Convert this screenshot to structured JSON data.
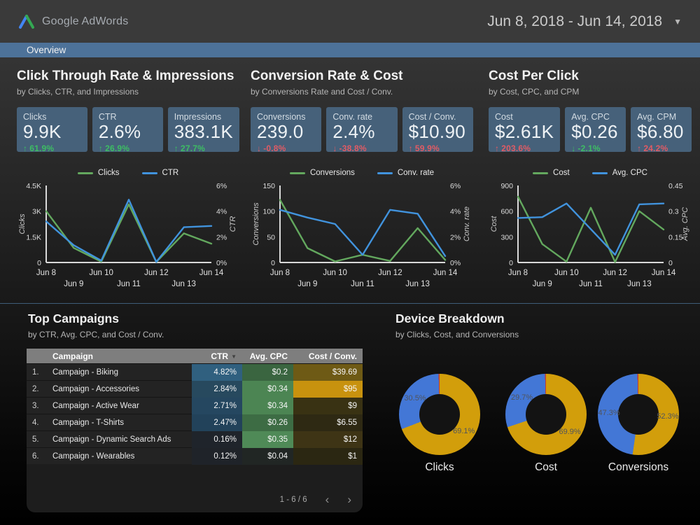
{
  "header": {
    "logo_text": "Google AdWords",
    "date_range": "Jun 8, 2018 - Jun 14, 2018"
  },
  "nav": {
    "tab": "Overview"
  },
  "colors": {
    "positive": "#3DBE63",
    "negative": "#E25B64",
    "scorecard_bg": "#46617A",
    "nav_bg": "#4D7299",
    "line_green": "#63A85E",
    "line_blue": "#4193DD",
    "donut_gold": "#D29E0B",
    "donut_blue": "#4377D6",
    "donut_red": "#C13B33"
  },
  "sections": [
    {
      "title": "Click Through Rate & Impressions",
      "subtitle": "by Clicks, CTR, and Impressions",
      "cards": [
        {
          "label": "Clicks",
          "value": "9.9K",
          "delta": "61.9%",
          "dir": "up",
          "good": true
        },
        {
          "label": "CTR",
          "value": "2.6%",
          "delta": "26.9%",
          "dir": "up",
          "good": true
        },
        {
          "label": "Impressions",
          "value": "383.1K",
          "delta": "27.7%",
          "dir": "up",
          "good": true
        }
      ]
    },
    {
      "title": "Conversion Rate & Cost",
      "subtitle": "by Conversions Rate and Cost / Conv.",
      "cards": [
        {
          "label": "Conversions",
          "value": "239.0",
          "delta": "-0.8%",
          "dir": "down",
          "good": false
        },
        {
          "label": "Conv. rate",
          "value": "2.4%",
          "delta": "-38.8%",
          "dir": "down",
          "good": false
        },
        {
          "label": "Cost / Conv.",
          "value": "$10.90",
          "delta": "59.9%",
          "dir": "up",
          "good": false
        }
      ]
    },
    {
      "title": "Cost Per Click",
      "subtitle": "by Cost, CPC, and CPM",
      "cards": [
        {
          "label": "Cost",
          "value": "$2.61K",
          "delta": "203.6%",
          "dir": "up",
          "good": false
        },
        {
          "label": "Avg. CPC",
          "value": "$0.26",
          "delta": "-2.1%",
          "dir": "down",
          "good": true
        },
        {
          "label": "Avg. CPM",
          "value": "$6.80",
          "delta": "24.2%",
          "dir": "up",
          "good": false
        }
      ]
    }
  ],
  "chart_data": {
    "line_charts": [
      {
        "type": "line",
        "x": [
          "Jun 8",
          "Jun 9",
          "Jun 10",
          "Jun 11",
          "Jun 12",
          "Jun 13",
          "Jun 14"
        ],
        "left_axis": {
          "title": "Clicks",
          "ticks": [
            "0",
            "1.5K",
            "3K",
            "4.5K"
          ],
          "max": 4500
        },
        "right_axis": {
          "title": "CTR",
          "ticks": [
            "0%",
            "2%",
            "4%",
            "6%"
          ],
          "max": 6
        },
        "series": [
          {
            "name": "Clicks",
            "axis": "left",
            "color": "#63A85E",
            "values": [
              3000,
              850,
              50,
              3400,
              30,
              1700,
              1100
            ]
          },
          {
            "name": "CTR",
            "axis": "right",
            "color": "#4193DD",
            "values": [
              3.2,
              1.35,
              0.15,
              4.9,
              0.05,
              2.75,
              2.85
            ]
          }
        ]
      },
      {
        "type": "line",
        "x": [
          "Jun 8",
          "Jun 9",
          "Jun 10",
          "Jun 11",
          "Jun 12",
          "Jun 13",
          "Jun 14"
        ],
        "left_axis": {
          "title": "Conversions",
          "ticks": [
            "0",
            "50",
            "100",
            "150"
          ],
          "max": 150
        },
        "right_axis": {
          "title": "Conv. rate",
          "ticks": [
            "0%",
            "2%",
            "4%",
            "6%"
          ],
          "max": 6
        },
        "series": [
          {
            "name": "Conversions",
            "axis": "left",
            "color": "#63A85E",
            "values": [
              122,
              28,
              2,
              15,
              3,
              67,
              5
            ]
          },
          {
            "name": "Conv. rate",
            "axis": "right",
            "color": "#4193DD",
            "values": [
              4.1,
              3.5,
              3.0,
              0.6,
              4.1,
              3.8,
              0.5
            ]
          }
        ]
      },
      {
        "type": "line",
        "x": [
          "Jun 8",
          "Jun 9",
          "Jun 10",
          "Jun 11",
          "Jun 12",
          "Jun 13",
          "Jun 14"
        ],
        "left_axis": {
          "title": "Cost",
          "ticks": [
            "0",
            "300",
            "600",
            "900"
          ],
          "max": 900
        },
        "right_axis": {
          "title": "Avg. CPC",
          "ticks": [
            "0",
            "0.15",
            "0.3",
            "0.45"
          ],
          "max": 0.45
        },
        "series": [
          {
            "name": "Cost",
            "axis": "left",
            "color": "#63A85E",
            "values": [
              770,
              215,
              10,
              640,
              5,
              600,
              385
            ]
          },
          {
            "name": "Avg. CPC",
            "axis": "right",
            "color": "#4193DD",
            "values": [
              0.26,
              0.265,
              0.345,
              0.195,
              0.045,
              0.34,
              0.345
            ]
          }
        ]
      }
    ],
    "donut_charts": [
      {
        "type": "donut",
        "label": "Clicks",
        "slices": [
          {
            "value": 69.1,
            "color": "#D29E0B",
            "label": "69.1%"
          },
          {
            "value": 30.5,
            "color": "#4377D6",
            "label": "30.5%"
          },
          {
            "value": 0.4,
            "color": "#C13B33",
            "label": ""
          }
        ]
      },
      {
        "type": "donut",
        "label": "Cost",
        "slices": [
          {
            "value": 69.9,
            "color": "#D29E0B",
            "label": "69.9%"
          },
          {
            "value": 29.7,
            "color": "#4377D6",
            "label": "29.7%"
          },
          {
            "value": 0.4,
            "color": "#C13B33",
            "label": ""
          }
        ]
      },
      {
        "type": "donut",
        "label": "Conversions",
        "slices": [
          {
            "value": 52.3,
            "color": "#D29E0B",
            "label": "52.3%"
          },
          {
            "value": 47.3,
            "color": "#4377D6",
            "label": "47.3%"
          },
          {
            "value": 0.4,
            "color": "#C13B33",
            "label": ""
          }
        ]
      }
    ]
  },
  "top_campaigns": {
    "title": "Top Campaigns",
    "subtitle": "by CTR, Avg. CPC, and Cost / Conv.",
    "columns": {
      "campaign": "Campaign",
      "ctr": "CTR",
      "cpc": "Avg. CPC",
      "cost_conv": "Cost / Conv."
    },
    "sort_column": "CTR",
    "rows": [
      {
        "rank": "1.",
        "name": "Campaign - Biking",
        "ctr": "4.82%",
        "cpc": "$0.2",
        "cost_conv": "$39.69",
        "ctr_bg": "#30607F",
        "cpc_bg": "#3A6540",
        "cost_bg": "#6E5A15"
      },
      {
        "rank": "2.",
        "name": "Campaign - Accessories",
        "ctr": "2.84%",
        "cpc": "$0.34",
        "cost_conv": "$95",
        "ctr_bg": "#27495E",
        "cpc_bg": "#4C8553",
        "cost_bg": "#C8920E"
      },
      {
        "rank": "3.",
        "name": "Campaign - Active Wear",
        "ctr": "2.71%",
        "cpc": "$0.34",
        "cost_conv": "$9",
        "ctr_bg": "#254760",
        "cpc_bg": "#4C8553",
        "cost_bg": "#393213"
      },
      {
        "rank": "4.",
        "name": "Campaign - T-Shirts",
        "ctr": "2.47%",
        "cpc": "$0.26",
        "cost_conv": "$6.55",
        "ctr_bg": "#22425A",
        "cpc_bg": "#3D6C44",
        "cost_bg": "#2E2913"
      },
      {
        "rank": "5.",
        "name": "Campaign - Dynamic Search Ads",
        "ctr": "0.16%",
        "cpc": "$0.35",
        "cost_conv": "$12",
        "ctr_bg": "#1F242B",
        "cpc_bg": "#4F8A57",
        "cost_bg": "#3E3415"
      },
      {
        "rank": "6.",
        "name": "Campaign - Wearables",
        "ctr": "0.12%",
        "cpc": "$0.04",
        "cost_conv": "$1",
        "ctr_bg": "#1F2329",
        "cpc_bg": "#212624",
        "cost_bg": "#2B2712"
      }
    ],
    "pagination": {
      "range": "1 - 6 / 6"
    }
  },
  "device_breakdown": {
    "title": "Device Breakdown",
    "subtitle": "by Clicks, Cost, and Conversions"
  }
}
